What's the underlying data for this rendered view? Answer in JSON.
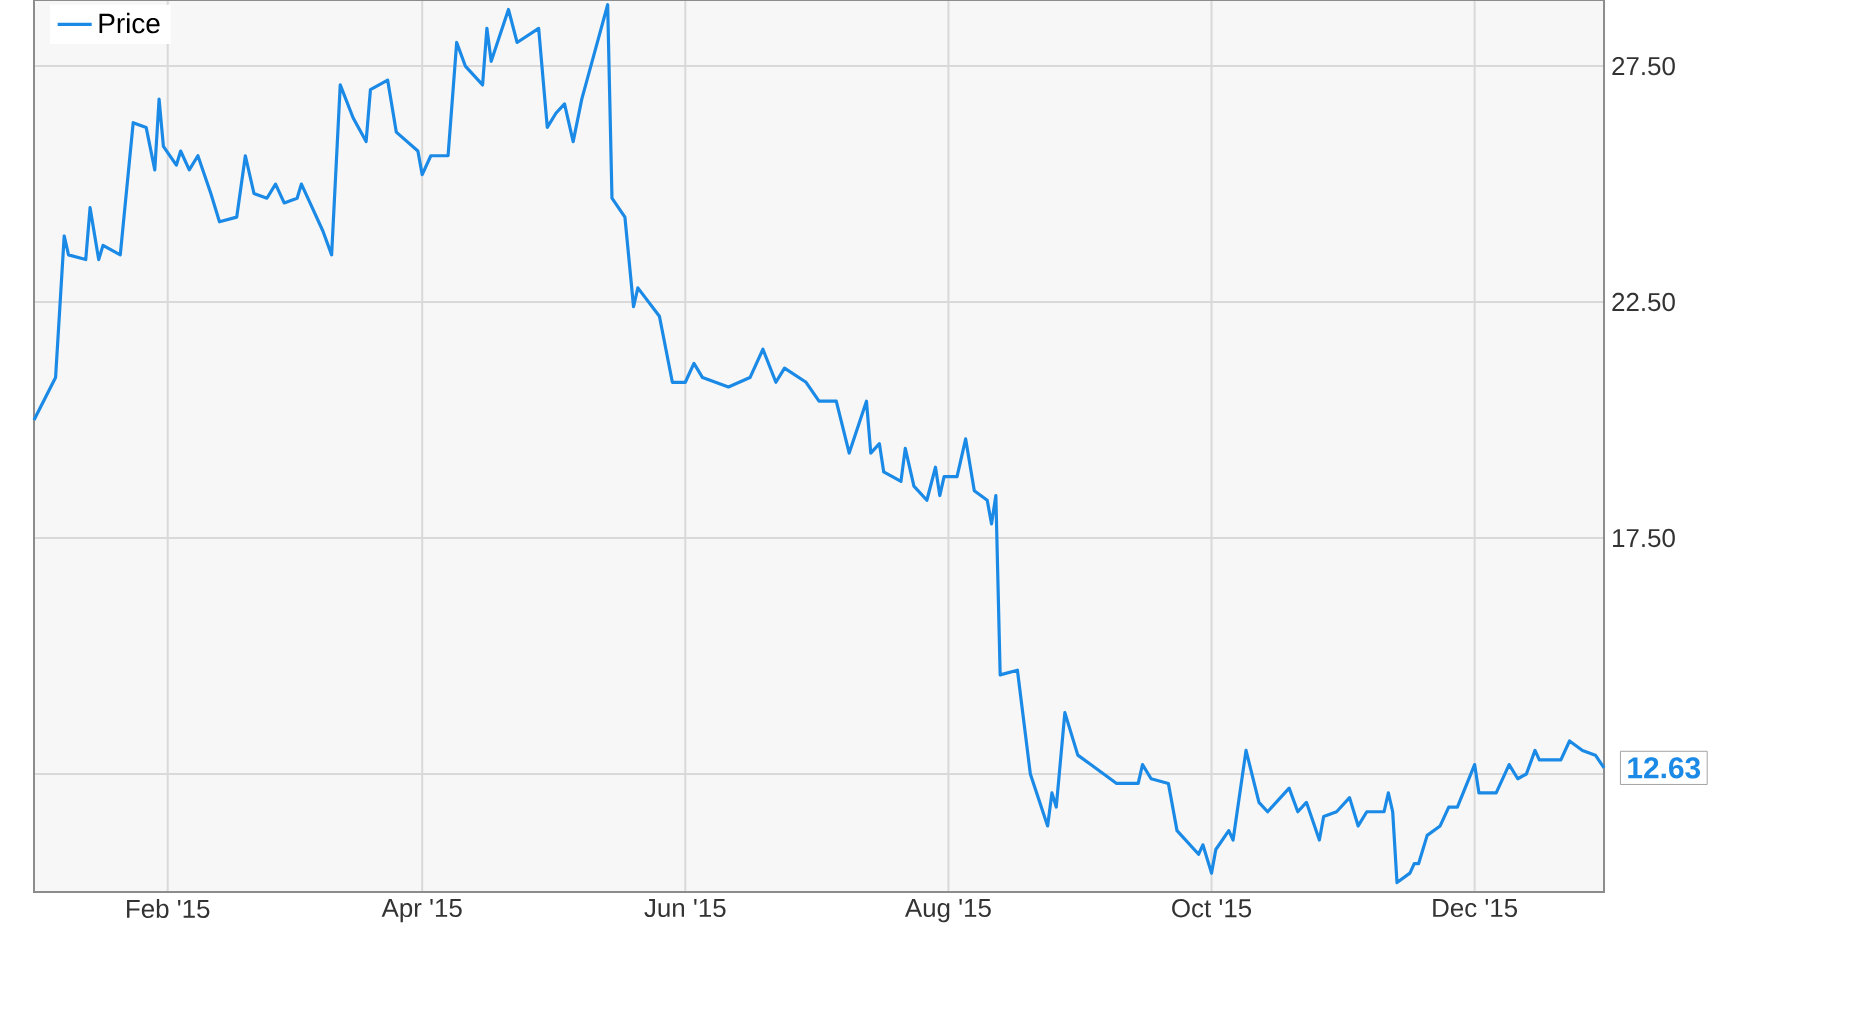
{
  "chart_data": {
    "type": "line",
    "x": [
      "2015-01-01",
      "2015-01-06",
      "2015-01-08",
      "2015-01-09",
      "2015-01-13",
      "2015-01-14",
      "2015-01-16",
      "2015-01-17",
      "2015-01-21",
      "2015-01-24",
      "2015-01-27",
      "2015-01-29",
      "2015-01-30",
      "2015-01-31",
      "2015-02-03",
      "2015-02-04",
      "2015-02-06",
      "2015-02-08",
      "2015-02-11",
      "2015-02-13",
      "2015-02-17",
      "2015-02-19",
      "2015-02-21",
      "2015-02-24",
      "2015-02-26",
      "2015-02-28",
      "2015-03-03",
      "2015-03-04",
      "2015-03-06",
      "2015-03-09",
      "2015-03-11",
      "2015-03-13",
      "2015-03-16",
      "2015-03-19",
      "2015-03-20",
      "2015-03-24",
      "2015-03-26",
      "2015-03-31",
      "2015-04-01",
      "2015-04-03",
      "2015-04-07",
      "2015-04-09",
      "2015-04-11",
      "2015-04-15",
      "2015-04-16",
      "2015-04-17",
      "2015-04-21",
      "2015-04-23",
      "2015-04-28",
      "2015-04-30",
      "2015-05-02",
      "2015-05-04",
      "2015-05-06",
      "2015-05-08",
      "2015-05-11",
      "2015-05-14",
      "2015-05-15",
      "2015-05-18",
      "2015-05-20",
      "2015-05-21",
      "2015-05-26",
      "2015-05-29",
      "2015-06-01",
      "2015-06-03",
      "2015-06-05",
      "2015-06-08",
      "2015-06-11",
      "2015-06-16",
      "2015-06-19",
      "2015-06-22",
      "2015-06-24",
      "2015-06-29",
      "2015-07-02",
      "2015-07-06",
      "2015-07-09",
      "2015-07-13",
      "2015-07-14",
      "2015-07-16",
      "2015-07-17",
      "2015-07-21",
      "2015-07-22",
      "2015-07-24",
      "2015-07-27",
      "2015-07-29",
      "2015-07-30",
      "2015-07-31",
      "2015-08-03",
      "2015-08-05",
      "2015-08-07",
      "2015-08-10",
      "2015-08-11",
      "2015-08-12",
      "2015-08-13",
      "2015-08-17",
      "2015-08-20",
      "2015-08-24",
      "2015-08-25",
      "2015-08-26",
      "2015-08-28",
      "2015-08-31",
      "2015-09-03",
      "2015-09-09",
      "2015-09-14",
      "2015-09-15",
      "2015-09-17",
      "2015-09-21",
      "2015-09-23",
      "2015-09-28",
      "2015-09-29",
      "2015-10-01",
      "2015-10-02",
      "2015-10-05",
      "2015-10-06",
      "2015-10-09",
      "2015-10-12",
      "2015-10-14",
      "2015-10-19",
      "2015-10-21",
      "2015-10-23",
      "2015-10-26",
      "2015-10-27",
      "2015-10-30",
      "2015-11-02",
      "2015-11-04",
      "2015-11-06",
      "2015-11-10",
      "2015-11-11",
      "2015-11-12",
      "2015-11-13",
      "2015-11-16",
      "2015-11-17",
      "2015-11-18",
      "2015-11-20",
      "2015-11-23",
      "2015-11-25",
      "2015-11-27",
      "2015-12-01",
      "2015-12-02",
      "2015-12-06",
      "2015-12-09",
      "2015-12-11",
      "2015-12-13",
      "2015-12-15",
      "2015-12-16",
      "2015-12-21",
      "2015-12-23",
      "2015-12-26",
      "2015-12-29",
      "2015-12-31"
    ],
    "series": [
      {
        "name": "Price",
        "color": "#1a8ae6",
        "values": [
          20.0,
          20.9,
          23.9,
          23.5,
          23.4,
          24.5,
          23.4,
          23.7,
          23.5,
          26.3,
          26.2,
          25.3,
          26.8,
          25.8,
          25.4,
          25.7,
          25.3,
          25.6,
          24.8,
          24.2,
          24.3,
          25.6,
          24.8,
          24.7,
          25.0,
          24.6,
          24.7,
          25.0,
          24.6,
          24.0,
          23.5,
          27.1,
          26.4,
          25.9,
          27.0,
          27.2,
          26.1,
          25.7,
          25.2,
          25.6,
          25.6,
          28.0,
          27.5,
          27.1,
          28.3,
          27.6,
          28.7,
          28.0,
          28.3,
          26.2,
          26.5,
          26.7,
          25.9,
          26.8,
          27.8,
          28.8,
          24.7,
          24.3,
          22.4,
          22.8,
          22.2,
          20.8,
          20.8,
          21.2,
          20.9,
          20.8,
          20.7,
          20.9,
          21.5,
          20.8,
          21.1,
          20.8,
          20.4,
          20.4,
          19.3,
          20.4,
          19.3,
          19.5,
          18.9,
          18.7,
          19.4,
          18.6,
          18.3,
          19.0,
          18.4,
          18.8,
          18.8,
          19.6,
          18.5,
          18.3,
          17.8,
          18.4,
          14.6,
          14.7,
          12.5,
          11.4,
          12.1,
          11.8,
          13.8,
          12.9,
          12.7,
          12.3,
          12.3,
          12.7,
          12.4,
          12.3,
          11.3,
          10.8,
          11.0,
          10.4,
          10.9,
          11.3,
          11.1,
          13.0,
          11.9,
          11.7,
          12.2,
          11.7,
          11.9,
          11.1,
          11.6,
          11.7,
          12.0,
          11.4,
          11.7,
          11.7,
          12.1,
          11.7,
          10.2,
          10.4,
          10.6,
          10.6,
          11.2,
          11.4,
          11.8,
          11.8,
          12.7,
          12.1,
          12.1,
          12.7,
          12.4,
          12.5,
          13.0,
          12.8,
          12.8,
          13.2,
          13.0,
          12.9,
          12.63
        ]
      }
    ],
    "xlim": [
      "2015-01-01",
      "2015-12-31"
    ],
    "xticks": [
      {
        "value": "2015-02-01",
        "label": "Feb '15"
      },
      {
        "value": "2015-04-01",
        "label": "Apr '15"
      },
      {
        "value": "2015-06-01",
        "label": "Jun '15"
      },
      {
        "value": "2015-08-01",
        "label": "Aug '15"
      },
      {
        "value": "2015-10-01",
        "label": "Oct '15"
      },
      {
        "value": "2015-12-01",
        "label": "Dec '15"
      }
    ],
    "ylim": [
      10,
      28.9
    ],
    "yticks": [
      {
        "value": 12.5,
        "label": null
      },
      {
        "value": 17.5,
        "label": "17.50"
      },
      {
        "value": 22.5,
        "label": "22.50"
      },
      {
        "value": 27.5,
        "label": "27.50"
      }
    ],
    "annotations": [
      {
        "text": "12.63",
        "x": "2015-12-31",
        "y": 12.63
      }
    ],
    "grid": true,
    "legend": "top left"
  }
}
